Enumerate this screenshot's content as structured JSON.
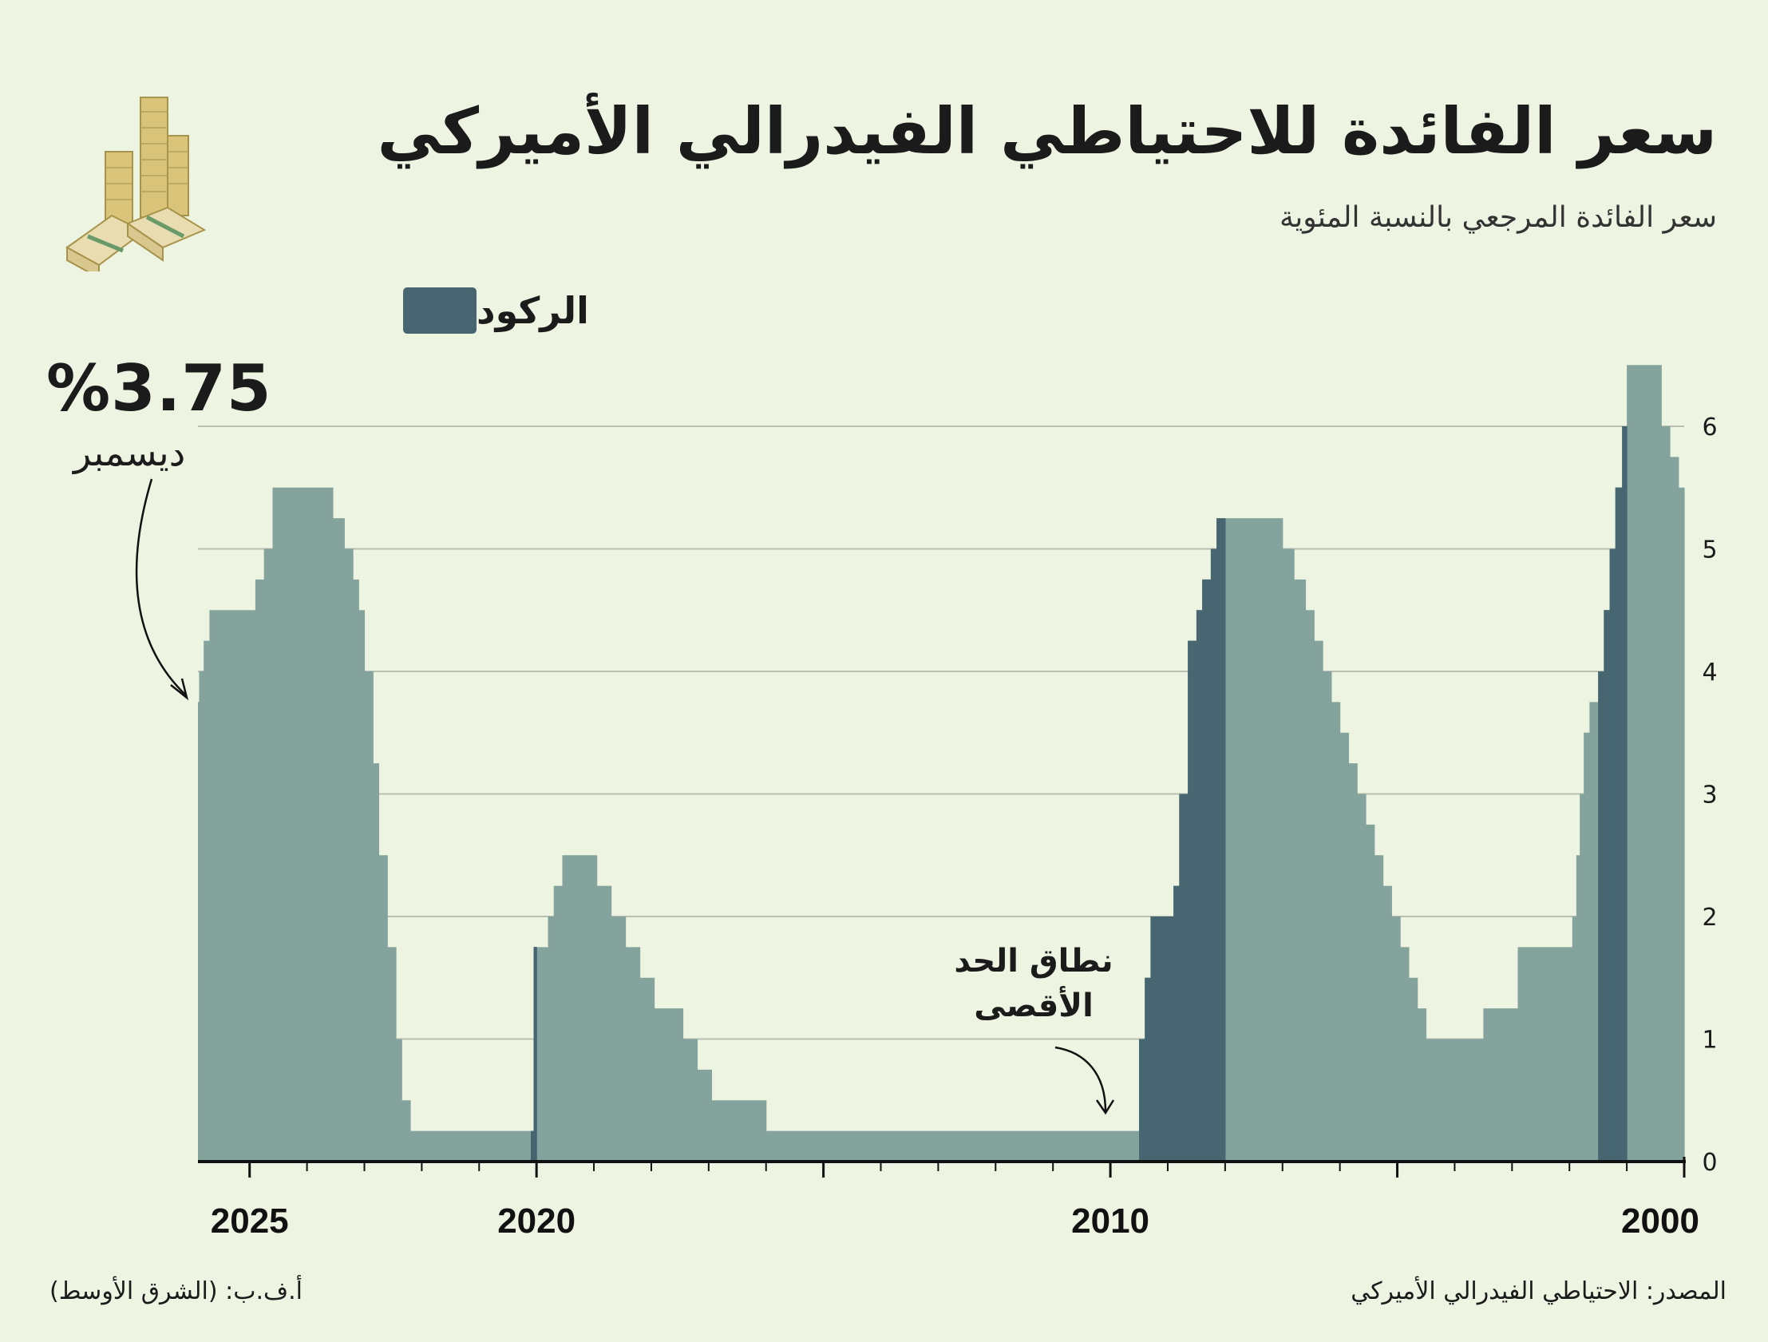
{
  "header": {
    "title": "سعر الفائدة للاحتياطي الفيدرالي الأميركي",
    "subtitle": "سعر الفائدة المرجعي بالنسبة المئوية"
  },
  "legend": {
    "label": "الركود",
    "color": "#476672"
  },
  "callout": {
    "value": "%3.75",
    "month": "ديسمبر"
  },
  "annotation": {
    "line1": "نطاق الحد",
    "line2": "الأقصى"
  },
  "footer": {
    "source": "المصدر: الاحتياطي الفيدرالي الأميركي",
    "credit": "أ.ف.ب: (الشرق الأوسط)"
  },
  "colors": {
    "rate": "#84a39c",
    "recession": "#476672",
    "background": "#eef4e2",
    "grid": "#b9bfb2"
  },
  "chart_data": {
    "type": "area",
    "title": "سعر الفائدة للاحتياطي الفيدرالي الأميركي",
    "ylabel": "سعر الفائدة المرجعي بالنسبة المئوية",
    "xlabel": "",
    "x_direction": "right-to-left",
    "xlim": [
      2000,
      2025.9
    ],
    "ylim": [
      0,
      6.5
    ],
    "y_ticks": [
      0,
      1,
      2,
      3,
      4,
      5,
      6
    ],
    "x_tick_labels": [
      {
        "year": 2025,
        "label": "2025"
      },
      {
        "year": 2020,
        "label": "2020"
      },
      {
        "year": 2010,
        "label": "2010"
      },
      {
        "year": 2000,
        "label": "2000"
      }
    ],
    "grid": true,
    "series": [
      {
        "name": "سعر الفائدة",
        "steps": [
          {
            "t": 2000.0,
            "v": 5.5
          },
          {
            "t": 2000.1,
            "v": 5.75
          },
          {
            "t": 2000.25,
            "v": 6.0
          },
          {
            "t": 2000.4,
            "v": 6.5
          },
          {
            "t": 2001.0,
            "v": 6.0
          },
          {
            "t": 2001.08,
            "v": 5.5
          },
          {
            "t": 2001.2,
            "v": 5.0
          },
          {
            "t": 2001.3,
            "v": 4.5
          },
          {
            "t": 2001.4,
            "v": 4.0
          },
          {
            "t": 2001.5,
            "v": 3.75
          },
          {
            "t": 2001.65,
            "v": 3.5
          },
          {
            "t": 2001.75,
            "v": 3.0
          },
          {
            "t": 2001.82,
            "v": 2.5
          },
          {
            "t": 2001.88,
            "v": 2.0
          },
          {
            "t": 2001.95,
            "v": 1.75
          },
          {
            "t": 2002.9,
            "v": 1.25
          },
          {
            "t": 2003.5,
            "v": 1.0
          },
          {
            "t": 2004.5,
            "v": 1.25
          },
          {
            "t": 2004.65,
            "v": 1.5
          },
          {
            "t": 2004.8,
            "v": 1.75
          },
          {
            "t": 2004.95,
            "v": 2.0
          },
          {
            "t": 2005.1,
            "v": 2.25
          },
          {
            "t": 2005.25,
            "v": 2.5
          },
          {
            "t": 2005.4,
            "v": 2.75
          },
          {
            "t": 2005.55,
            "v": 3.0
          },
          {
            "t": 2005.7,
            "v": 3.25
          },
          {
            "t": 2005.85,
            "v": 3.5
          },
          {
            "t": 2006.0,
            "v": 3.75
          },
          {
            "t": 2006.15,
            "v": 4.0
          },
          {
            "t": 2006.3,
            "v": 4.25
          },
          {
            "t": 2006.45,
            "v": 4.5
          },
          {
            "t": 2006.6,
            "v": 4.75
          },
          {
            "t": 2006.8,
            "v": 5.0
          },
          {
            "t": 2007.0,
            "v": 5.25
          },
          {
            "t": 2008.15,
            "v": 5.0
          },
          {
            "t": 2008.25,
            "v": 4.75
          },
          {
            "t": 2008.4,
            "v": 4.5
          },
          {
            "t": 2008.5,
            "v": 4.25
          },
          {
            "t": 2008.65,
            "v": 3.0
          },
          {
            "t": 2008.8,
            "v": 2.25
          },
          {
            "t": 2008.9,
            "v": 2.0
          },
          {
            "t": 2009.3,
            "v": 1.5
          },
          {
            "t": 2009.4,
            "v": 1.0
          },
          {
            "t": 2009.5,
            "v": 0.25
          },
          {
            "t": 2016.0,
            "v": 0.5
          },
          {
            "t": 2016.95,
            "v": 0.75
          },
          {
            "t": 2017.2,
            "v": 1.0
          },
          {
            "t": 2017.45,
            "v": 1.25
          },
          {
            "t": 2017.95,
            "v": 1.5
          },
          {
            "t": 2018.2,
            "v": 1.75
          },
          {
            "t": 2018.45,
            "v": 2.0
          },
          {
            "t": 2018.7,
            "v": 2.25
          },
          {
            "t": 2018.95,
            "v": 2.5
          },
          {
            "t": 2019.55,
            "v": 2.25
          },
          {
            "t": 2019.7,
            "v": 2.0
          },
          {
            "t": 2019.8,
            "v": 1.75
          },
          {
            "t": 2020.05,
            "v": 0.25
          },
          {
            "t": 2022.2,
            "v": 0.5
          },
          {
            "t": 2022.35,
            "v": 1.0
          },
          {
            "t": 2022.45,
            "v": 1.75
          },
          {
            "t": 2022.6,
            "v": 2.5
          },
          {
            "t": 2022.75,
            "v": 3.25
          },
          {
            "t": 2022.85,
            "v": 4.0
          },
          {
            "t": 2023.0,
            "v": 4.5
          },
          {
            "t": 2023.1,
            "v": 4.75
          },
          {
            "t": 2023.2,
            "v": 5.0
          },
          {
            "t": 2023.35,
            "v": 5.25
          },
          {
            "t": 2023.55,
            "v": 5.5
          },
          {
            "t": 2024.6,
            "v": 5.0
          },
          {
            "t": 2024.75,
            "v": 4.75
          },
          {
            "t": 2024.9,
            "v": 4.5
          },
          {
            "t": 2025.7,
            "v": 4.25
          },
          {
            "t": 2025.8,
            "v": 4.0
          },
          {
            "t": 2025.88,
            "v": 3.75
          },
          {
            "t": 2025.9,
            "v": 3.75
          }
        ]
      }
    ],
    "recessions": [
      {
        "start": 2001.0,
        "end": 2001.5
      },
      {
        "start": 2008.0,
        "end": 2009.5
      },
      {
        "start": 2020.0,
        "end": 2020.1
      }
    ],
    "latest": {
      "value": 3.75,
      "unit": "%",
      "month": "ديسمبر"
    },
    "annotations": [
      "نطاق الحد الأقصى"
    ]
  }
}
